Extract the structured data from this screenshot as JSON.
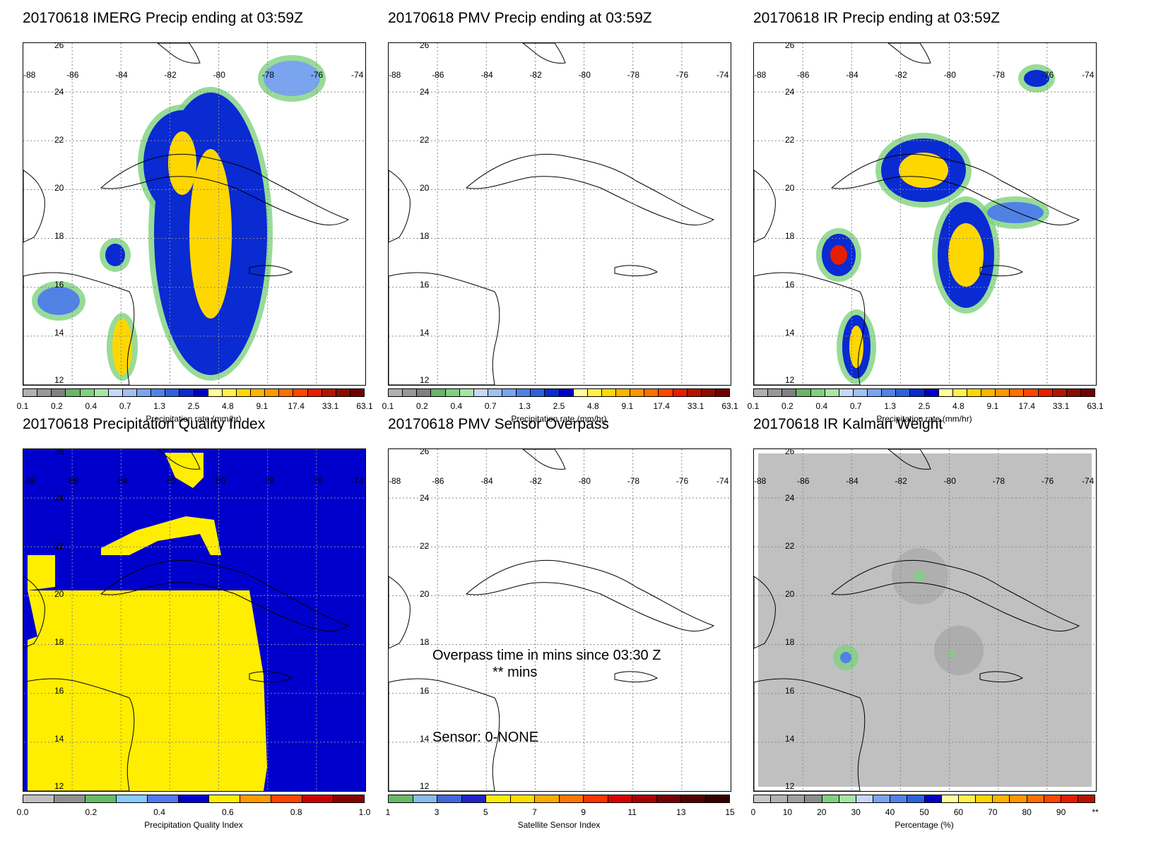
{
  "panels": [
    {
      "id": "imerg",
      "title": "20170618 IMERG Precip ending at 03:59Z",
      "type": "precip",
      "colorbar_label": "Precipitation rate (mm/hr)",
      "ticks": [
        "0.1",
        "0.2",
        "0.4",
        "0.7",
        "1.3",
        "2.5",
        "4.8",
        "9.1",
        "17.4",
        "33.1",
        "63.1"
      ]
    },
    {
      "id": "pmv",
      "title": "20170618 PMV Precip ending at 03:59Z",
      "type": "precip",
      "colorbar_label": "Precipitation rate (mm/hr)",
      "ticks": [
        "0.1",
        "0.2",
        "0.4",
        "0.7",
        "1.3",
        "2.5",
        "4.8",
        "9.1",
        "17.4",
        "33.1",
        "63.1"
      ]
    },
    {
      "id": "ir",
      "title": "20170618 IR Precip ending at 03:59Z",
      "type": "precip",
      "colorbar_label": "Precipitation rate (mm/hr)",
      "ticks": [
        "0.1",
        "0.2",
        "0.4",
        "0.7",
        "1.3",
        "2.5",
        "4.8",
        "9.1",
        "17.4",
        "33.1",
        "63.1"
      ]
    },
    {
      "id": "pqi",
      "title": "20170618 Precipitation Quality Index",
      "type": "pqi",
      "colorbar_label": "Precipitation Quality Index",
      "ticks": [
        "0.0",
        "0.2",
        "0.4",
        "0.6",
        "0.8",
        "1.0"
      ]
    },
    {
      "id": "overpass",
      "title": "20170618 PMV Sensor Overpass",
      "type": "sensor",
      "colorbar_label": "Satellite Sensor Index",
      "ticks": [
        "1",
        "3",
        "5",
        "7",
        "9",
        "11",
        "13",
        "15"
      ],
      "overpass_line1": "Overpass time in mins since 03:30 Z",
      "overpass_line2": "** mins",
      "sensor_line": "Sensor:   0-NONE"
    },
    {
      "id": "kalman",
      "title": "20170618 IR Kalman Weight",
      "type": "kalman",
      "colorbar_label": "Percentage (%)",
      "ticks": [
        "0",
        "10",
        "20",
        "30",
        "40",
        "50",
        "60",
        "70",
        "80",
        "90",
        "**"
      ]
    }
  ],
  "lon_labels": [
    "-88",
    "-86",
    "-84",
    "-82",
    "-80",
    "-78",
    "-76",
    "-74"
  ],
  "lat_labels": [
    "26",
    "24",
    "22",
    "20",
    "18",
    "16",
    "14",
    "12"
  ],
  "colors": {
    "precip_scale": [
      "#b0b0b0",
      "#989898",
      "#808080",
      "#6ab46a",
      "#7ed27e",
      "#a6e6a6",
      "#c6d8f8",
      "#a0c0f0",
      "#7aa4ee",
      "#5082e6",
      "#2c62dc",
      "#0a2ad2",
      "#0000c8",
      "#ffff9a",
      "#fff04a",
      "#ffd700",
      "#ffb400",
      "#ff9600",
      "#ff6e00",
      "#ff4600",
      "#e61e00",
      "#b41400",
      "#8c0a00",
      "#6e0000"
    ],
    "pqi_scale": [
      "#c0c0c0",
      "#909090",
      "#66bb66",
      "#88ccff",
      "#5577ee",
      "#0000cc",
      "#ffee00",
      "#ff9900",
      "#ff4400",
      "#cc0000",
      "#880000"
    ],
    "sensor_scale": [
      "#66bb66",
      "#88bbee",
      "#4466dd",
      "#2222cc",
      "#ffee00",
      "#ffdd00",
      "#ffaa00",
      "#ff7700",
      "#ff3300",
      "#dd0000",
      "#aa0000",
      "#770000",
      "#550000",
      "#330000"
    ],
    "kalman_scale": [
      "#c8c8c8",
      "#b4b4b4",
      "#a0a0a0",
      "#8c8c8c",
      "#7ed27e",
      "#a6e6a6",
      "#c6d8f8",
      "#7aa4ee",
      "#5082e6",
      "#2c62dc",
      "#0000c8",
      "#ffff9a",
      "#fff04a",
      "#ffd700",
      "#ffb400",
      "#ff9600",
      "#ff6e00",
      "#ff4600",
      "#e61e00",
      "#b41400"
    ],
    "pqi_blue": "#0000cc",
    "pqi_yellow": "#ffee00",
    "kalman_gray": "#c0c0c0"
  }
}
